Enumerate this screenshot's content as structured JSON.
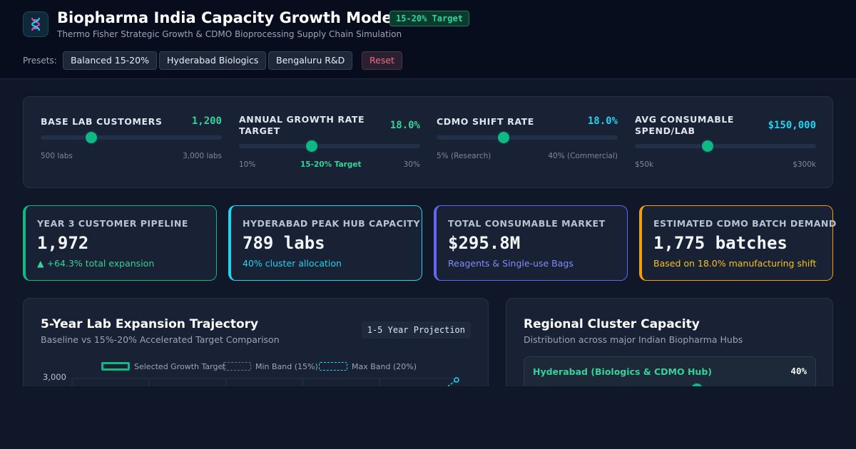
{
  "app": {
    "title": "Biopharma India Capacity Growth Modeler",
    "target_badge": "15-20% Target",
    "subtitle": "Thermo Fisher Strategic Growth & CDMO Bioprocessing Supply Chain Simulation",
    "logo_icon": "dna-icon"
  },
  "presets": {
    "label": "Presets:",
    "items": [
      "Balanced 15-20%",
      "Hyderabad Biologics",
      "Bengaluru R&D"
    ],
    "reset_label": "Reset"
  },
  "controls": [
    {
      "label": "BASE LAB CUSTOMERS",
      "value": "1,200",
      "min_label": "500 labs",
      "mid_label": "",
      "max_label": "3,000 labs",
      "fraction": 0.28,
      "value_color": "#34d399"
    },
    {
      "label": "ANNUAL GROWTH RATE TARGET",
      "value": "18.0%",
      "min_label": "10%",
      "mid_label": "15-20% Target",
      "max_label": "30%",
      "fraction": 0.4,
      "value_color": "#34d399"
    },
    {
      "label": "CDMO SHIFT RATE",
      "value": "18.0%",
      "min_label": "5% (Research)",
      "mid_label": "",
      "max_label": "40% (Commercial)",
      "fraction": 0.37,
      "value_color": "#22d3ee"
    },
    {
      "label": "AVG CONSUMABLE SPEND/LAB",
      "value": "$150,000",
      "min_label": "$50k",
      "mid_label": "",
      "max_label": "$300k",
      "fraction": 0.4,
      "value_color": "#22d3ee"
    }
  ],
  "kpis": [
    {
      "label": "YEAR 3 CUSTOMER PIPELINE",
      "value": "1,972",
      "note": "▲ +64.3% total expansion",
      "accent": "#10b981",
      "note_color": "#34d399"
    },
    {
      "label": "HYDERABAD PEAK HUB CAPACITY",
      "value": "789 labs",
      "note": "40% cluster allocation",
      "accent": "#22d3ee",
      "note_color": "#22d3ee"
    },
    {
      "label": "TOTAL CONSUMABLE MARKET",
      "value": "$295.8M",
      "note": "Reagents & Single-use Bags",
      "accent": "#6366f1",
      "note_color": "#818cf8"
    },
    {
      "label": "ESTIMATED CDMO BATCH DEMAND",
      "value": "1,775 batches",
      "note": "Based on 18.0% manufacturing shift",
      "accent": "#f59e0b",
      "note_color": "#fbbf24"
    }
  ],
  "trajectory": {
    "title": "5-Year Lab Expansion Trajectory",
    "subtitle": "Baseline vs 15%-20% Accelerated Target Comparison",
    "badge": "1-5 Year Projection",
    "legend": [
      "Selected Growth Target",
      "Min Band (15%)",
      "Max Band (20%)"
    ],
    "y_tick_top": "3,000",
    "colors": {
      "selected": "#10b981",
      "min": "#64748b",
      "max": "#22d3ee"
    }
  },
  "regional": {
    "title": "Regional Cluster Capacity",
    "subtitle": "Distribution across major Indian Biopharma Hubs",
    "clusters": [
      {
        "name": "Hyderabad (Biologics & CDMO Hub)",
        "share": "40%",
        "fraction": 0.4
      }
    ]
  }
}
